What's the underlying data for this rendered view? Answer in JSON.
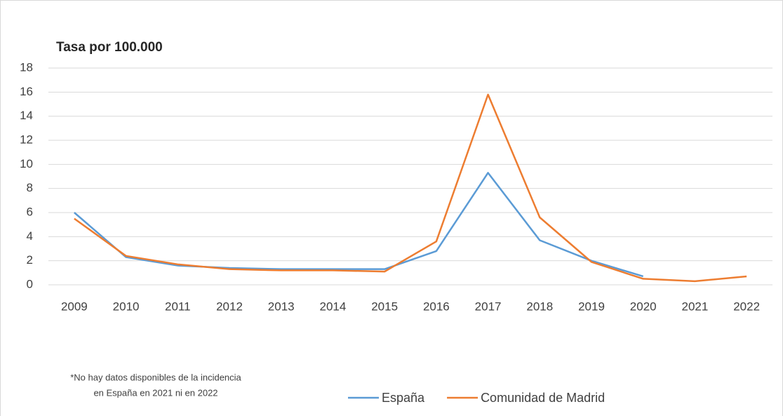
{
  "chart_data": {
    "type": "line",
    "title": "Tasa por 100.000",
    "categories": [
      "2009",
      "2010",
      "2011",
      "2012",
      "2013",
      "2014",
      "2015",
      "2016",
      "2017",
      "2018",
      "2019",
      "2020",
      "2021",
      "2022"
    ],
    "series": [
      {
        "name": "España",
        "color": "#5b9bd5",
        "values": [
          6.0,
          2.3,
          1.6,
          1.4,
          1.3,
          1.3,
          1.3,
          2.8,
          9.3,
          3.7,
          2.0,
          0.7,
          null,
          null
        ]
      },
      {
        "name": "Comunidad de Madrid",
        "color": "#ed7d31",
        "values": [
          5.5,
          2.4,
          1.7,
          1.3,
          1.2,
          1.2,
          1.1,
          3.6,
          15.8,
          5.6,
          1.9,
          0.5,
          0.3,
          0.7
        ]
      }
    ],
    "ylim": [
      0,
      18
    ],
    "yticks": [
      0,
      2,
      4,
      6,
      8,
      10,
      12,
      14,
      16,
      18
    ],
    "grid": true,
    "legend": "bottom",
    "footnote": [
      "*No hay datos disponibles de la incidencia",
      "en España en 2021 ni en 2022"
    ]
  }
}
